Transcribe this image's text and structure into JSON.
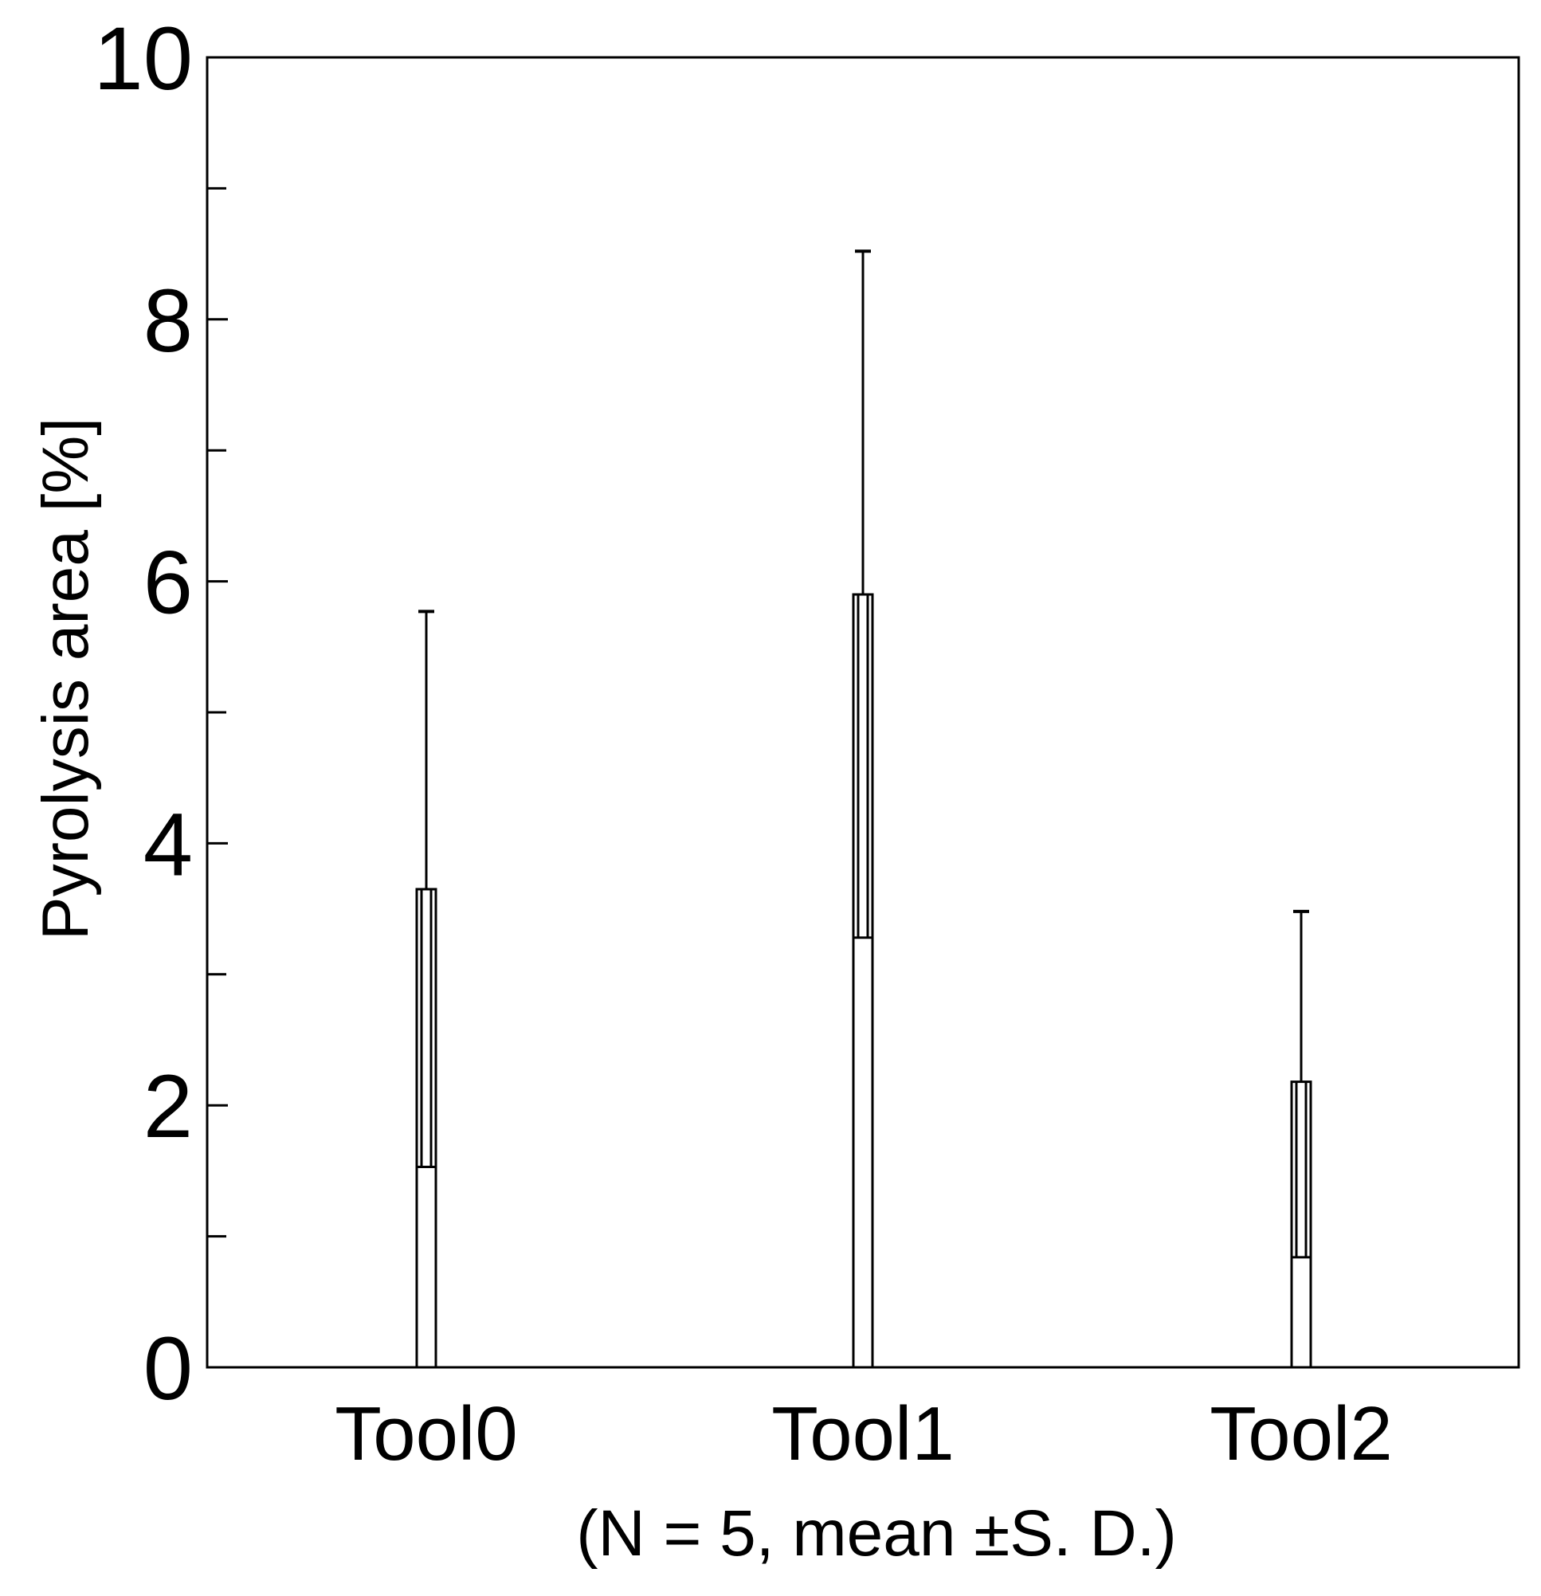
{
  "chart_data": {
    "type": "bar",
    "categories": [
      "Tool0",
      "Tool1",
      "Tool2"
    ],
    "values": [
      3.65,
      5.9,
      2.18
    ],
    "error_upper": [
      5.77,
      8.52,
      3.48
    ],
    "error_lower": [
      1.53,
      3.28,
      0.84
    ],
    "title": "",
    "xlabel": "(N = 5, mean ±S. D.)",
    "ylabel": "Pyrolysis area [%]",
    "ylim": [
      0,
      10
    ],
    "yticks": [
      0,
      2,
      4,
      6,
      8,
      10
    ],
    "yminor_ticks": [
      1,
      3,
      5,
      7,
      9
    ],
    "grid": false,
    "legend": "none",
    "bar_fill": "#ffffff",
    "stroke_color": "#000000"
  }
}
